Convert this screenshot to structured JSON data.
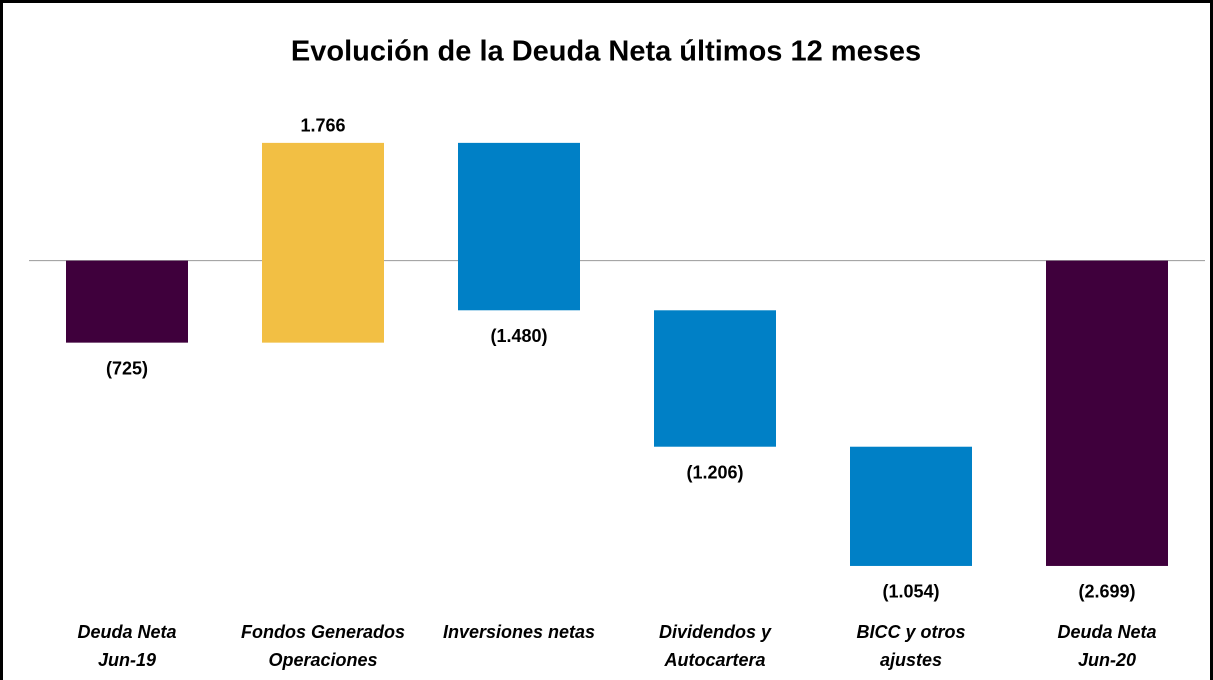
{
  "chart_data": {
    "type": "waterfall",
    "title": "Evolución de la Deuda Neta últimos 12 meses",
    "categories": [
      [
        "Deuda Neta",
        "Jun-19"
      ],
      [
        "Fondos Generados",
        "Operaciones"
      ],
      [
        "Inversiones netas"
      ],
      [
        "Dividendos y",
        "Autocartera"
      ],
      [
        "BICC y otros",
        "ajustes"
      ],
      [
        "Deuda Neta",
        "Jun-20"
      ]
    ],
    "values": [
      -725,
      1766,
      -1480,
      -1206,
      -1054,
      -2699
    ],
    "value_labels": [
      "(725)",
      "1.766",
      "(1.480)",
      "(1.206)",
      "(1.054)",
      "(2.699)"
    ],
    "is_total": [
      true,
      false,
      false,
      false,
      false,
      true
    ],
    "colors": [
      "#3f003c",
      "#f2bf44",
      "#0080c6",
      "#0080c6",
      "#0080c6",
      "#3f003c"
    ],
    "ylim": [
      -3000,
      1420
    ]
  }
}
